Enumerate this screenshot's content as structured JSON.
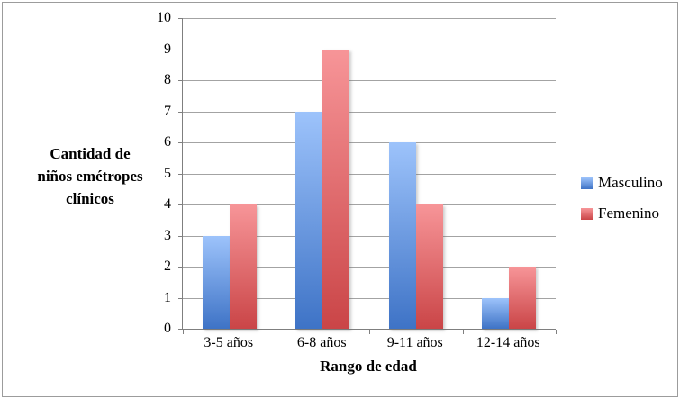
{
  "chart_data": {
    "type": "bar",
    "title": "",
    "categories": [
      "3-5 años",
      "6-8 años",
      "9-11 años",
      "12-14 años"
    ],
    "series": [
      {
        "name": "Masculino",
        "values": [
          3,
          7,
          6,
          1
        ],
        "color_top": "#9DC3FB",
        "color_bottom": "#3E73C6"
      },
      {
        "name": "Femenino",
        "values": [
          4,
          9,
          4,
          2
        ],
        "color_top": "#F79598",
        "color_bottom": "#CA4547"
      }
    ],
    "xlabel": "Rango de edad",
    "ylabel": "Cantidad de niños emétropes clínicos",
    "ylabel_lines": [
      "Cantidad de",
      "niños emétropes",
      "clínicos"
    ],
    "ylim": [
      0,
      10
    ],
    "ytick_step": 1,
    "grid": true,
    "legend_position": "right"
  },
  "colors": {
    "gridline": "#A3A3A3",
    "axis": "#7F7F7F",
    "frame_border": "#9C9C9C",
    "text": "#000000",
    "background": "#FFFFFF"
  }
}
